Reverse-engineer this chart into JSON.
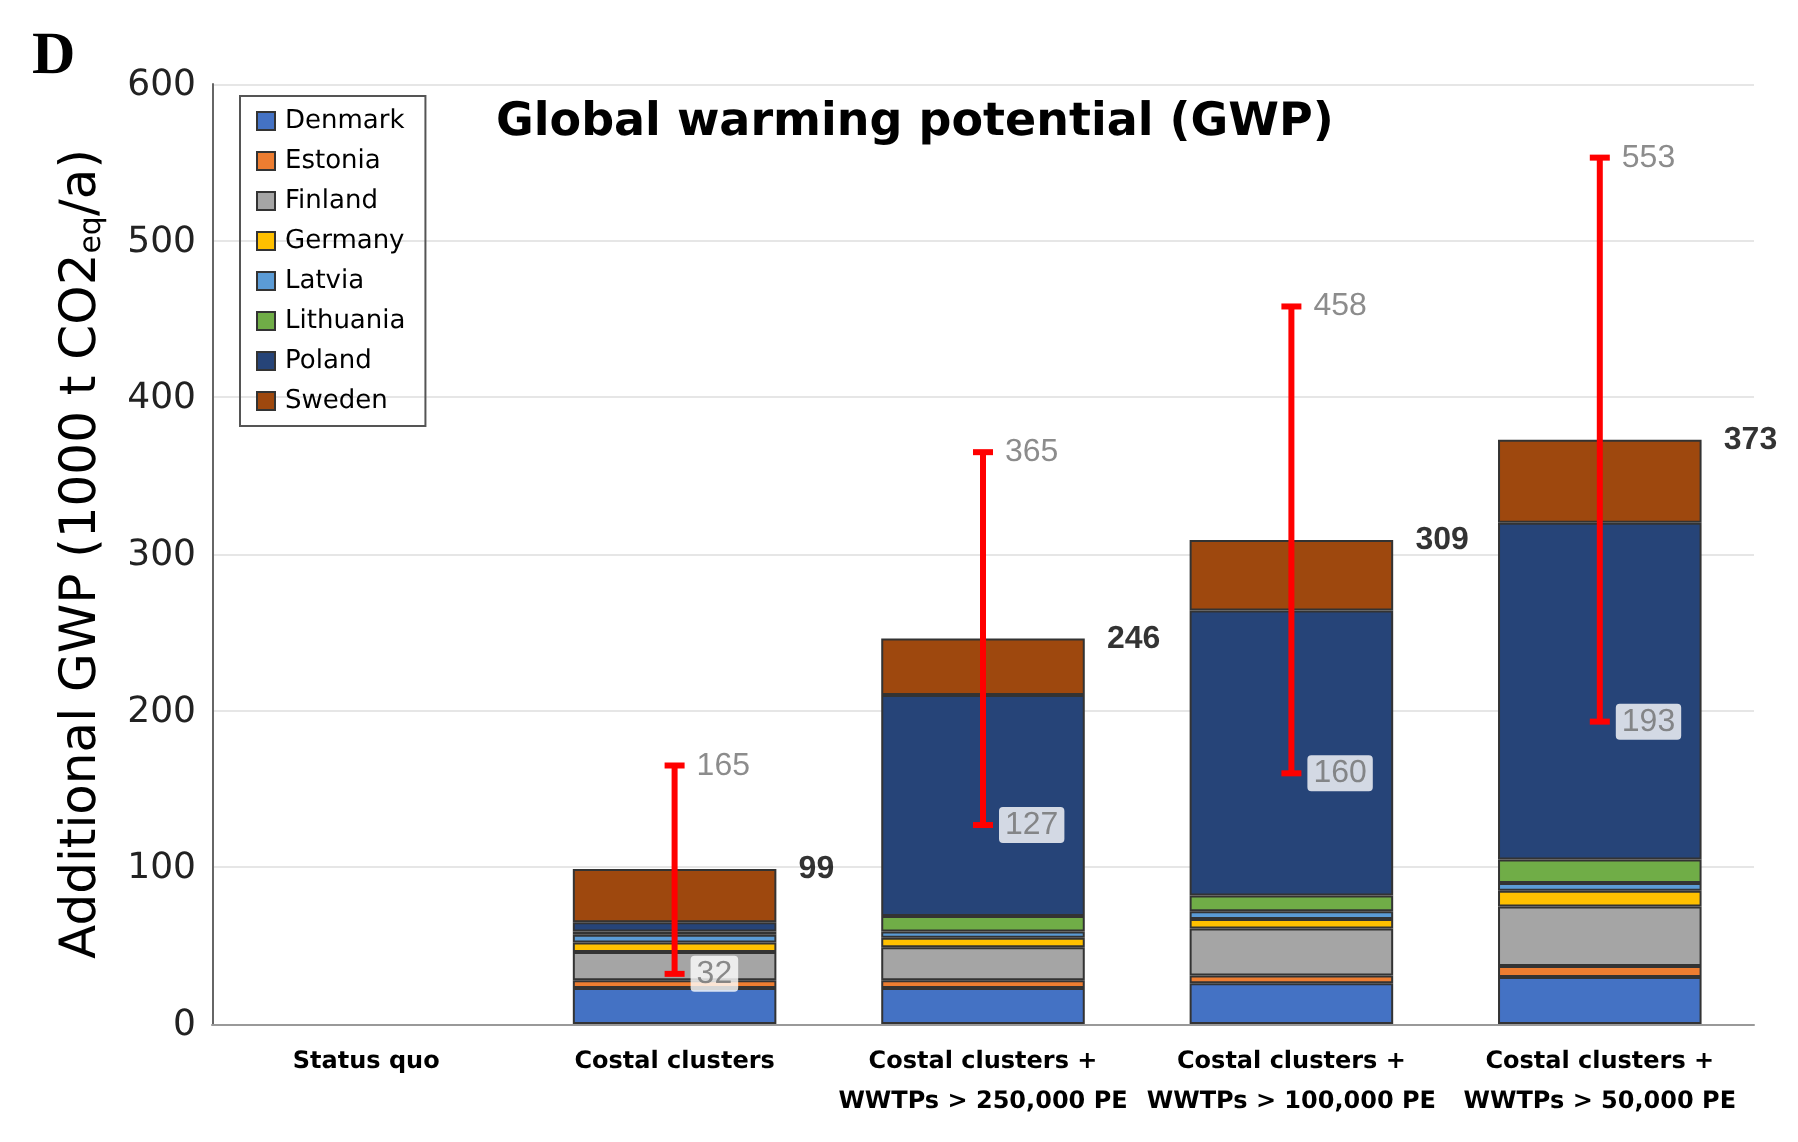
{
  "chart_data": {
    "type": "bar",
    "stacked": true,
    "title": "Global warming potential (GWP)",
    "ylabel": "Additional GWP (1000 t CO2$_{eq}$/a)",
    "categories": [
      "Status quo",
      "Costal clusters",
      "Costal clusters +\nWWTPs > 250,000 PE",
      "Costal clusters +\nWWTPs > 100,000 PE",
      "Costal clusters +\nWWTPs > 50,000 PE"
    ],
    "series": [
      {
        "name": "Denmark",
        "color": "#4472c4",
        "values": [
          null,
          23,
          23,
          26,
          30
        ]
      },
      {
        "name": "Estonia",
        "color": "#ed7d31",
        "values": [
          null,
          5,
          5,
          5,
          7
        ]
      },
      {
        "name": "Finland",
        "color": "#a5a5a5",
        "values": [
          null,
          18,
          21,
          30,
          38
        ]
      },
      {
        "name": "Germany",
        "color": "#ffc000",
        "values": [
          null,
          6,
          6,
          6,
          10
        ]
      },
      {
        "name": "Latvia",
        "color": "#5b9bd5",
        "values": [
          null,
          5,
          4,
          5,
          5
        ]
      },
      {
        "name": "Lithuania",
        "color": "#70ad47",
        "values": [
          null,
          2,
          10,
          10,
          15
        ]
      },
      {
        "name": "Poland",
        "color": "#264478",
        "values": [
          null,
          6,
          141,
          182,
          215
        ]
      },
      {
        "name": "Sweden",
        "color": "#9e480e",
        "values": [
          null,
          34,
          36,
          45,
          53
        ],
        "errors": [
          null,
          [
            32,
            165
          ],
          [
            127,
            365
          ],
          [
            160,
            458
          ],
          [
            193,
            553
          ]
        ]
      }
    ],
    "totals": [
      null,
      "99",
      "246",
      "309",
      "373"
    ],
    "annotations": [
      "D",
      {
        "text": "32",
        "x": "Costal clusters",
        "y": 32
      },
      {
        "text": "165",
        "x": "Costal clusters",
        "y": 165
      },
      {
        "text": "127",
        "x": "Costal clusters +\nWWTPs > 250,000 PE",
        "y": 127
      },
      {
        "text": "365",
        "x": "Costal clusters +\nWWTPs > 250,000 PE",
        "y": 365
      },
      {
        "text": "160",
        "x": "Costal clusters +\nWWTPs > 100,000 PE",
        "y": 160
      },
      {
        "text": "458",
        "x": "Costal clusters +\nWWTPs > 100,000 PE",
        "y": 458
      },
      {
        "text": "193",
        "x": "Costal clusters +\nWWTPs > 50,000 PE",
        "y": 193
      },
      {
        "text": "553",
        "x": "Costal clusters +\nWWTPs > 50,000 PE",
        "y": 553
      }
    ],
    "ylim": [
      0,
      600
    ],
    "yticks": [
      0,
      100,
      200,
      300,
      400,
      500,
      600
    ],
    "grid": "y",
    "legend": "top left"
  }
}
